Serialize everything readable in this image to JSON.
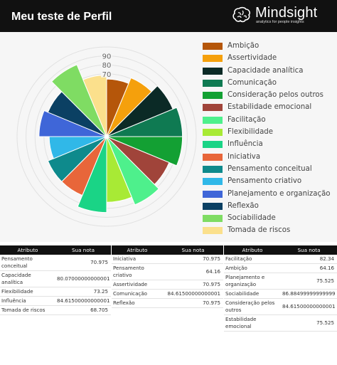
{
  "header": {
    "title": "Meu teste de Perfil",
    "brand_name": "Mindsight",
    "brand_tagline": "analytics for people insights"
  },
  "chart_data": {
    "type": "polar-area",
    "title": "",
    "radial_ticks": [
      "90",
      "80",
      "70"
    ],
    "rmax": 100,
    "series": [
      {
        "name": "Ambição",
        "value": 64.16,
        "color": "#b5560a"
      },
      {
        "name": "Assertividade",
        "value": 70.975,
        "color": "#f5a00c"
      },
      {
        "name": "Capacidade analítica",
        "value": 80.07,
        "color": "#0b2a26"
      },
      {
        "name": "Comunicação",
        "value": 84.615,
        "color": "#0f7a52"
      },
      {
        "name": "Consideração pelos outros",
        "value": 84.615,
        "color": "#13a033"
      },
      {
        "name": "Estabilidade emocional",
        "value": 75.525,
        "color": "#a0443a"
      },
      {
        "name": "Facilitação",
        "value": 82.34,
        "color": "#4ef08c"
      },
      {
        "name": "Flexibilidade",
        "value": 73.25,
        "color": "#a8ea35"
      },
      {
        "name": "Influência",
        "value": 84.615,
        "color": "#1ad486"
      },
      {
        "name": "Iniciativa",
        "value": 70.975,
        "color": "#e8663a"
      },
      {
        "name": "Pensamento conceitual",
        "value": 70.975,
        "color": "#0e8a8c"
      },
      {
        "name": "Pensamento criativo",
        "value": 64.16,
        "color": "#30b8e8"
      },
      {
        "name": "Planejamento e organização",
        "value": 75.525,
        "color": "#3f66d8"
      },
      {
        "name": "Reflexão",
        "value": 70.975,
        "color": "#0b4063"
      },
      {
        "name": "Sociabilidade",
        "value": 86.885,
        "color": "#7fdc63"
      },
      {
        "name": "Tomada de riscos",
        "value": 68.705,
        "color": "#fbe08c"
      }
    ]
  },
  "tables": {
    "header_attr": "Atributo",
    "header_score": "Sua nota",
    "t1": [
      {
        "attr": "Pensamento conceitual",
        "score": "70.975"
      },
      {
        "attr": "Capacidade analítica",
        "score": "80.07000000000001"
      },
      {
        "attr": "Flexibilidade",
        "score": "73.25"
      },
      {
        "attr": "Influência",
        "score": "84.61500000000001"
      },
      {
        "attr": "Tomada de riscos",
        "score": "68.705"
      }
    ],
    "t2": [
      {
        "attr": "Iniciativa",
        "score": "70.975"
      },
      {
        "attr": "Pensamento criativo",
        "score": "64.16"
      },
      {
        "attr": "Assertividade",
        "score": "70.975"
      },
      {
        "attr": "Comunicação",
        "score": "84.61500000000001"
      },
      {
        "attr": "Reflexão",
        "score": "70.975"
      }
    ],
    "t3": [
      {
        "attr": "Facilitação",
        "score": "82.34"
      },
      {
        "attr": "Ambição",
        "score": "64.16"
      },
      {
        "attr": "Planejamento e organização",
        "score": "75.525"
      },
      {
        "attr": "Sociabilidade",
        "score": "86.88499999999999"
      },
      {
        "attr": "Consideração pelos outros",
        "score": "84.61500000000001"
      },
      {
        "attr": "Estabilidade emocional",
        "score": "75.525"
      }
    ]
  }
}
